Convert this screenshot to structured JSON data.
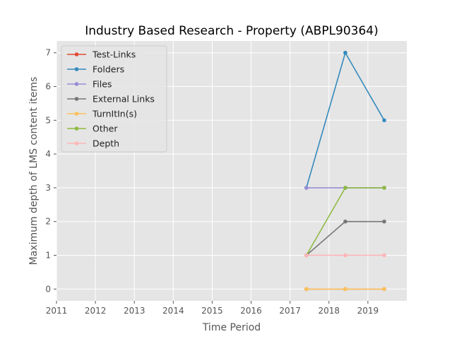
{
  "chart_data": {
    "type": "line",
    "title": "Industry Based Research - Property (ABPL90364)",
    "xlabel": "Time Period",
    "ylabel": "Maximum depth of LMS content items",
    "xlim": [
      2011,
      2020
    ],
    "ylim": [
      -0.35,
      7.35
    ],
    "xticks": [
      2011,
      2012,
      2013,
      2014,
      2015,
      2016,
      2017,
      2018,
      2019
    ],
    "yticks": [
      0,
      1,
      2,
      3,
      4,
      5,
      6,
      7
    ],
    "grid": true,
    "legend_position": "top-left",
    "x": [
      2017.42,
      2018.42,
      2019.42
    ],
    "series": [
      {
        "name": "Test-Links",
        "color": "#E24A33",
        "values": [
          0,
          0,
          0
        ]
      },
      {
        "name": "Folders",
        "color": "#348ABD",
        "values": [
          3,
          7,
          5
        ]
      },
      {
        "name": "Files",
        "color": "#988ED5",
        "values": [
          3,
          3,
          3
        ]
      },
      {
        "name": "External Links",
        "color": "#777777",
        "values": [
          1,
          2,
          2
        ]
      },
      {
        "name": "TurnItIn(s)",
        "color": "#FBC15E",
        "values": [
          0,
          0,
          0
        ]
      },
      {
        "name": "Other",
        "color": "#8EBA42",
        "values": [
          1,
          3,
          3
        ]
      },
      {
        "name": "Depth",
        "color": "#FFB5B8",
        "values": [
          1,
          1,
          1
        ]
      }
    ]
  }
}
